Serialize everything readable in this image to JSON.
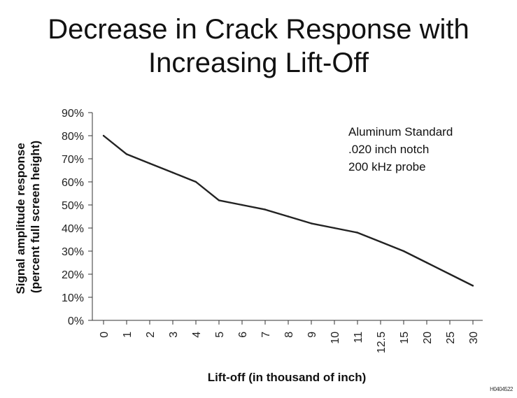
{
  "chart_data": {
    "type": "line",
    "title_lines": [
      "Decrease in Crack Response with",
      "Increasing Lift-Off"
    ],
    "xlabel": "Lift-off (in thousand of inch)",
    "ylabel_lines": [
      "Signal amplitude response",
      "(percent full screen height)"
    ],
    "categories": [
      "0",
      "1",
      "2",
      "3",
      "4",
      "5",
      "6",
      "7",
      "8",
      "9",
      "10",
      "11",
      "12.5",
      "15",
      "20",
      "25",
      "30"
    ],
    "values": [
      80,
      72,
      68,
      64,
      60,
      52,
      50,
      48,
      45,
      42,
      40,
      38,
      34,
      30,
      25,
      20,
      15
    ],
    "yticks": [
      "0%",
      "10%",
      "20%",
      "30%",
      "40%",
      "50%",
      "60%",
      "70%",
      "80%",
      "90%"
    ],
    "ylim": [
      0,
      90
    ],
    "annotation_lines": [
      "Aluminum Standard",
      ".020 inch notch",
      "200 kHz probe"
    ],
    "line_color": "#222222",
    "grid": false,
    "legend": "none"
  },
  "figure_id": "H0404522"
}
